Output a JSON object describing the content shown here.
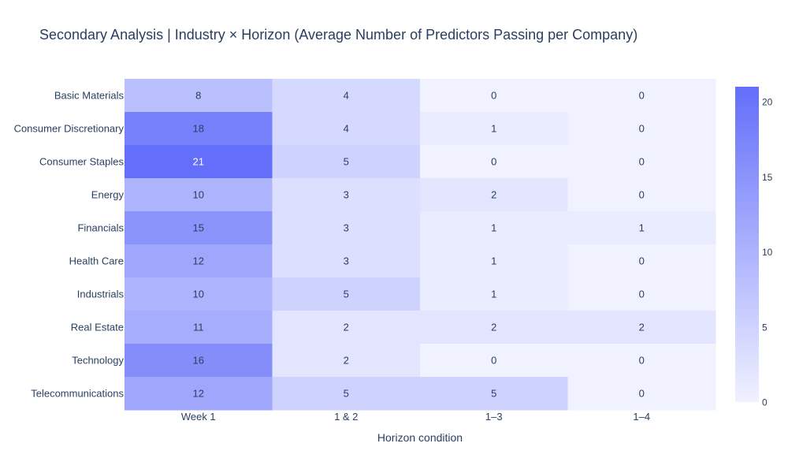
{
  "chart_data": {
    "type": "heatmap",
    "title": "Secondary Analysis  |  Industry × Horizon (Average Number of Predictors Passing per Company)",
    "xlabel": "Horizon condition",
    "ylabel": "",
    "x_categories": [
      "Week 1",
      "1 & 2",
      "1–3",
      "1–4"
    ],
    "y_categories": [
      "Basic Materials",
      "Consumer Discretionary",
      "Consumer Staples",
      "Energy",
      "Financials",
      "Health Care",
      "Industrials",
      "Real Estate",
      "Technology",
      "Telecommunications"
    ],
    "values": [
      [
        8,
        4,
        0,
        0
      ],
      [
        18,
        4,
        1,
        0
      ],
      [
        21,
        5,
        0,
        0
      ],
      [
        10,
        3,
        2,
        0
      ],
      [
        15,
        3,
        1,
        1
      ],
      [
        12,
        3,
        1,
        0
      ],
      [
        10,
        5,
        1,
        0
      ],
      [
        11,
        2,
        2,
        2
      ],
      [
        16,
        2,
        0,
        0
      ],
      [
        12,
        5,
        5,
        0
      ]
    ],
    "zlim": [
      0,
      21
    ],
    "colorscale": {
      "low": "#f0f2ff",
      "high": "#636efa"
    },
    "colorbar_ticks": [
      "0",
      "5",
      "10",
      "15",
      "20"
    ]
  }
}
